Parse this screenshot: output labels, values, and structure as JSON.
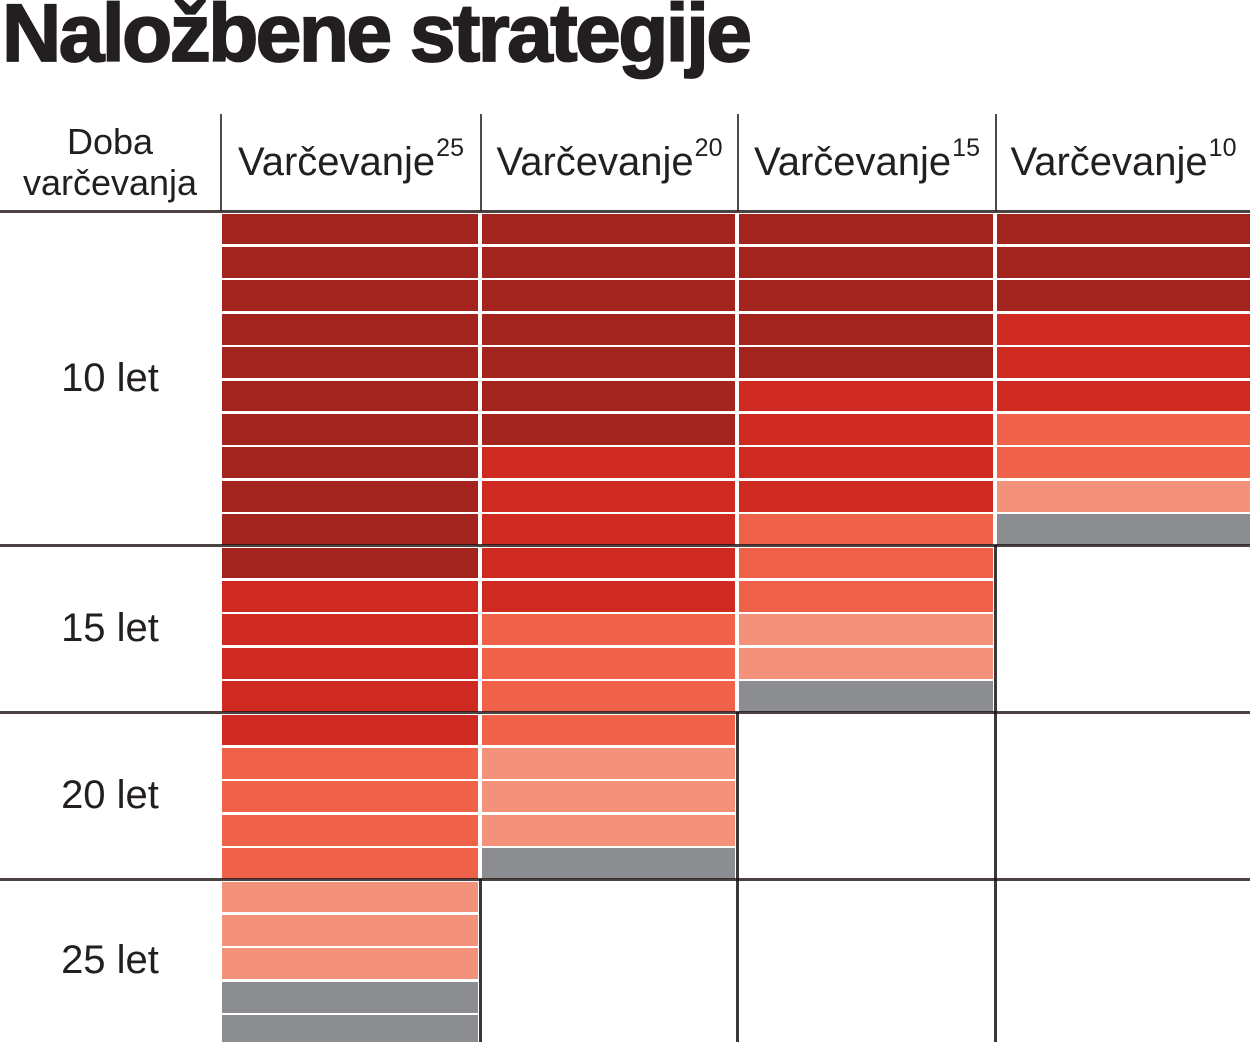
{
  "title": "Naložbene strategije",
  "row_header": {
    "line1": "Doba",
    "line2": "varčevanja"
  },
  "chart_data": {
    "type": "heatmap",
    "title": "Naložbene strategije",
    "row_axis": {
      "header": "Doba varčevanja",
      "sections": [
        {
          "label": "10 let",
          "rows": 10
        },
        {
          "label": "15 let",
          "rows": 5
        },
        {
          "label": "20 let",
          "rows": 5
        },
        {
          "label": "25 let",
          "rows": 5
        }
      ]
    },
    "columns": [
      {
        "label": "Varčevanje",
        "superscript": "25",
        "total_bars": 25,
        "segments": [
          {
            "color": "dark_red",
            "bars": 11
          },
          {
            "color": "red",
            "bars": 5
          },
          {
            "color": "tomato",
            "bars": 4
          },
          {
            "color": "salmon",
            "bars": 3
          },
          {
            "color": "gray",
            "bars": 2
          }
        ]
      },
      {
        "label": "Varčevanje",
        "superscript": "20",
        "total_bars": 20,
        "segments": [
          {
            "color": "dark_red",
            "bars": 7
          },
          {
            "color": "red",
            "bars": 5
          },
          {
            "color": "tomato",
            "bars": 4
          },
          {
            "color": "salmon",
            "bars": 3
          },
          {
            "color": "gray",
            "bars": 1
          }
        ]
      },
      {
        "label": "Varčevanje",
        "superscript": "15",
        "total_bars": 15,
        "segments": [
          {
            "color": "dark_red",
            "bars": 5
          },
          {
            "color": "red",
            "bars": 4
          },
          {
            "color": "tomato",
            "bars": 3
          },
          {
            "color": "salmon",
            "bars": 2
          },
          {
            "color": "gray",
            "bars": 1
          }
        ]
      },
      {
        "label": "Varčevanje",
        "superscript": "10",
        "total_bars": 10,
        "segments": [
          {
            "color": "dark_red",
            "bars": 3
          },
          {
            "color": "red",
            "bars": 3
          },
          {
            "color": "tomato",
            "bars": 2
          },
          {
            "color": "salmon",
            "bars": 1
          },
          {
            "color": "gray",
            "bars": 1
          }
        ]
      }
    ],
    "palette": {
      "dark_red": "#a3241f",
      "red": "#cf2a21",
      "tomato": "#f0614a",
      "salmon": "#f4917a",
      "gray": "#8b8d90"
    },
    "bar_separator_color": "#fdf7f6",
    "section_line_color": "#3a2a2a",
    "text_color": "#231f20"
  }
}
